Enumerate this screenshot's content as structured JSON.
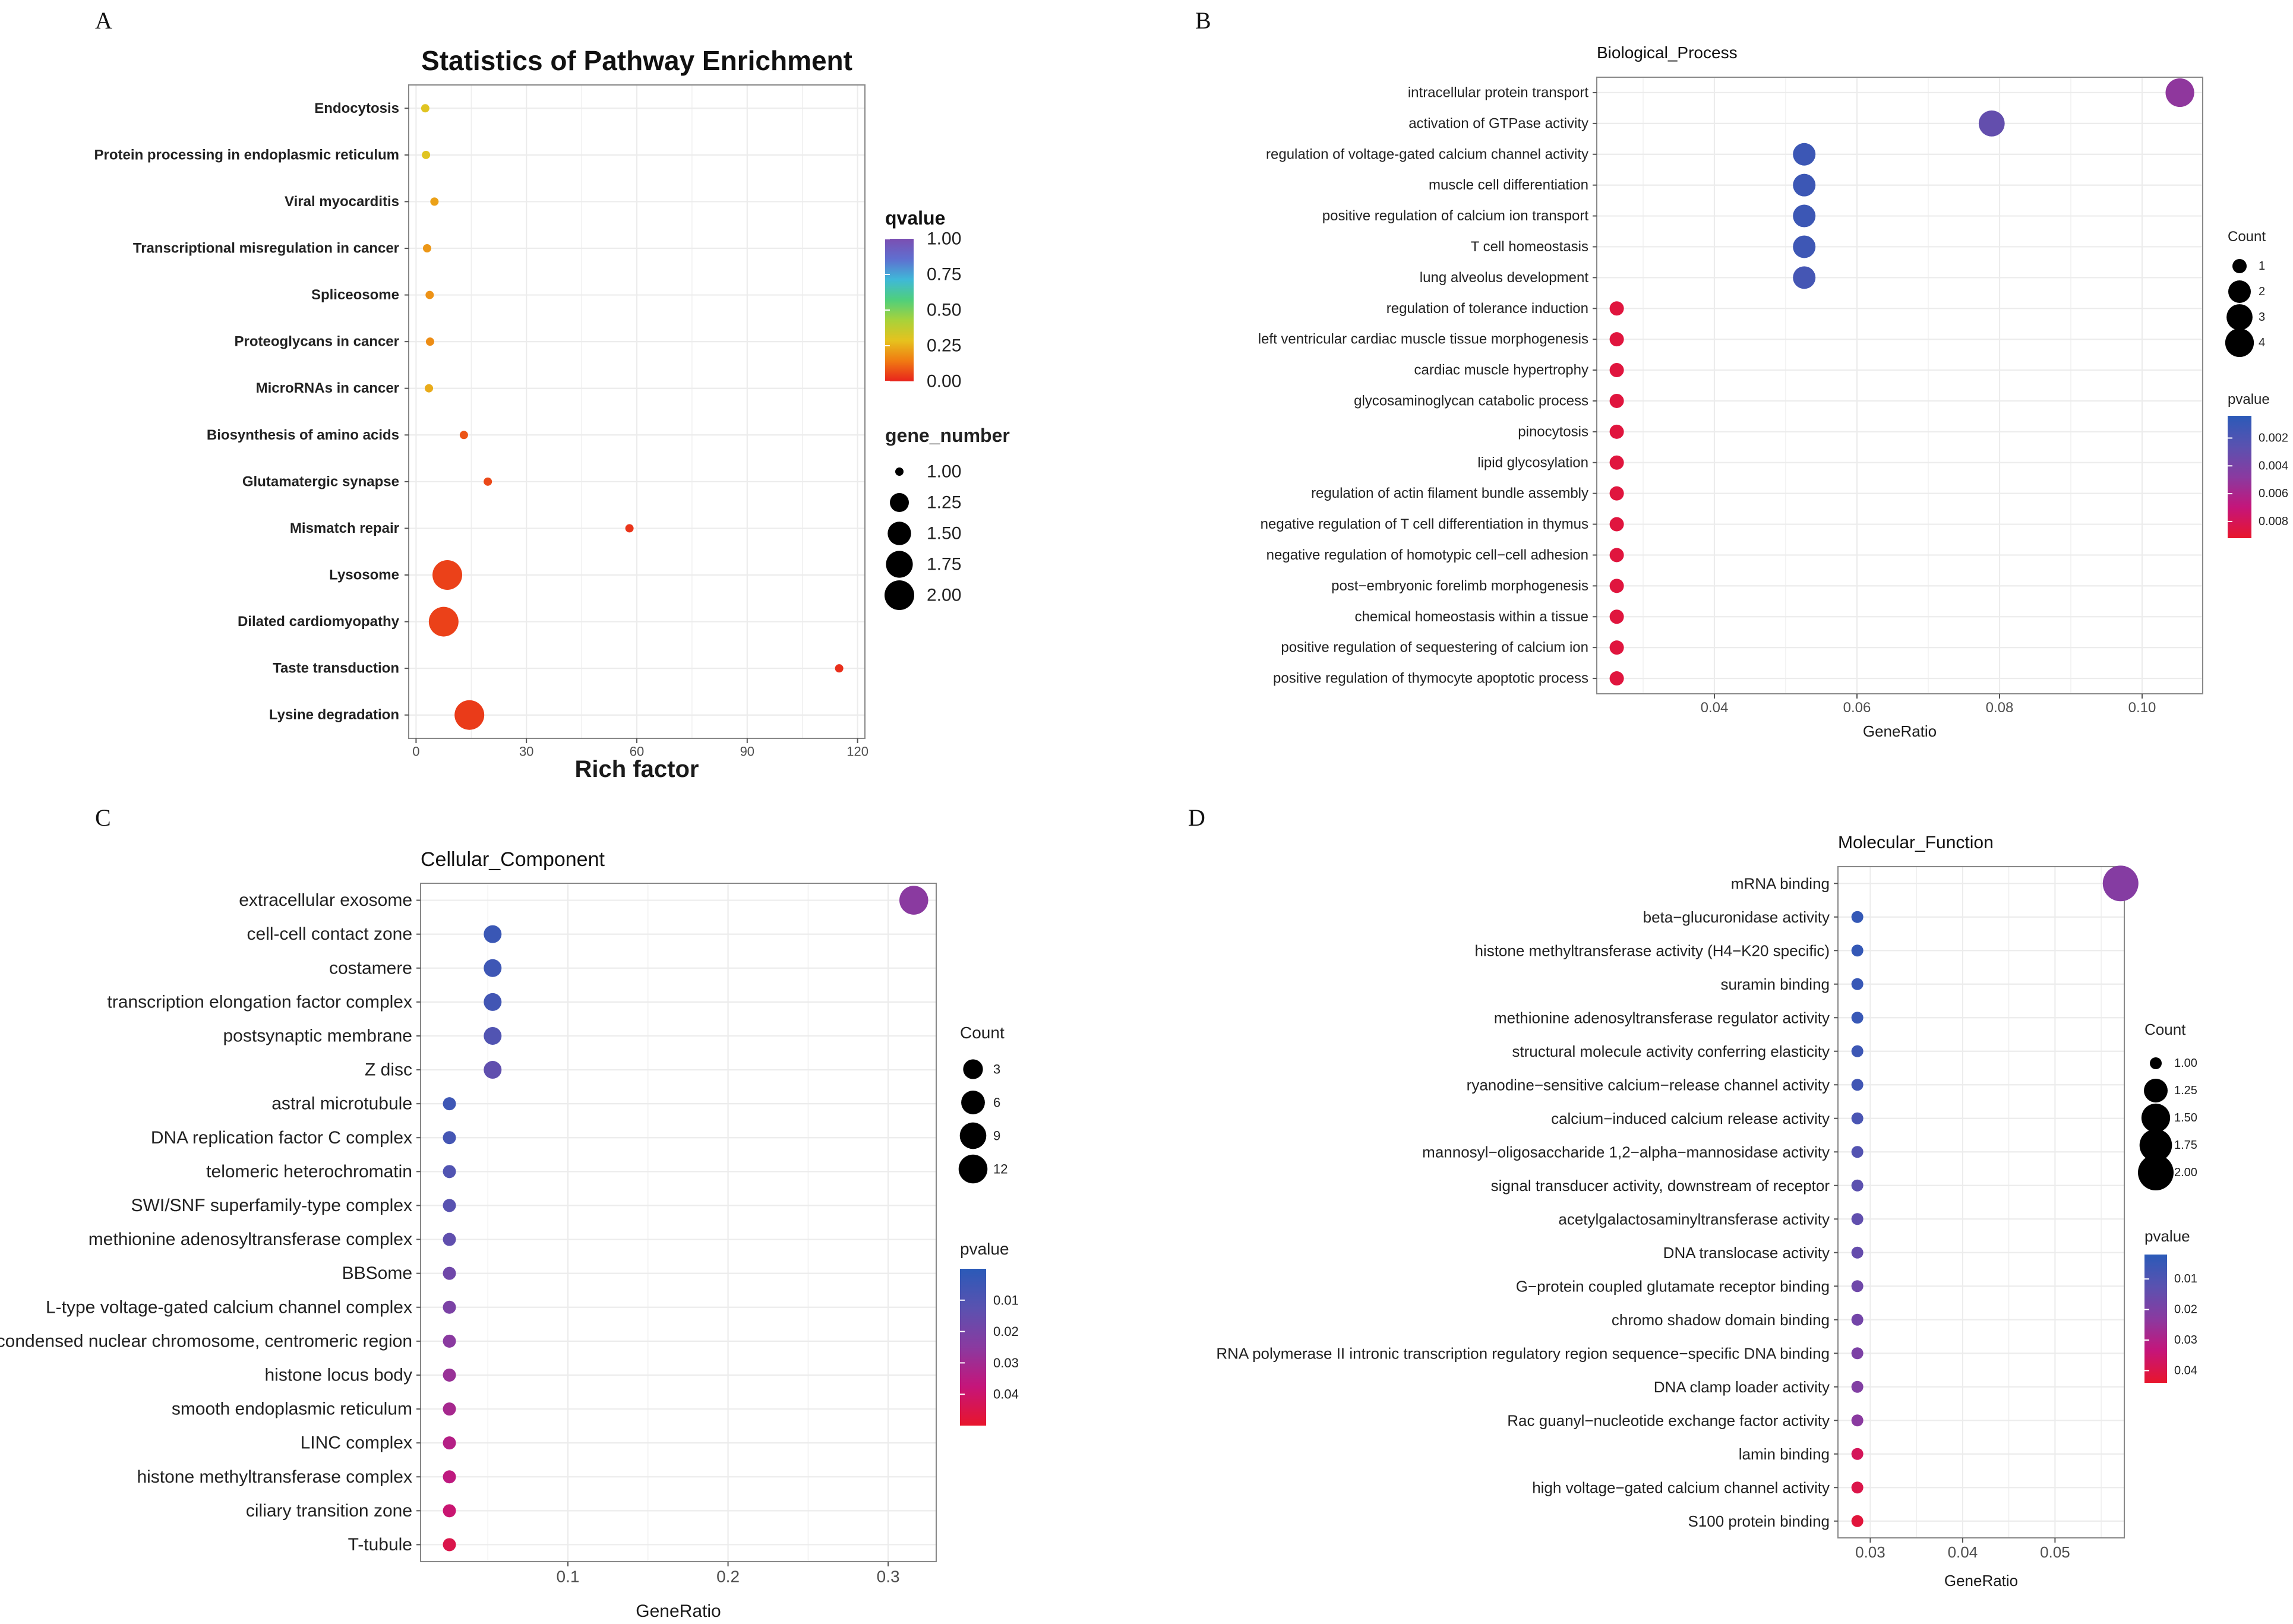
{
  "figure": {
    "panel_letters": [
      "A",
      "B",
      "C",
      "D"
    ]
  },
  "colors": {
    "q_gradient": [
      "#e8231c",
      "#f07a12",
      "#e6c21e",
      "#a8d23a",
      "#4fcf7c",
      "#3fb8d8",
      "#5f6fd0",
      "#7b4fb2"
    ],
    "p_gradient": [
      "#e8152c",
      "#c5157a",
      "#8a3aa0",
      "#5a52b0",
      "#2b5ab8"
    ],
    "plot_border": "#888888",
    "grid": "#ececec",
    "tick_label": "#4d4d4d",
    "axis_title": "#1a1a1a"
  },
  "chart_data": [
    {
      "type": "scatter",
      "panel": "A",
      "title": "Statistics of Pathway Enrichment",
      "xlabel": "Rich factor",
      "ylabel": "",
      "xlim": [
        -2,
        122
      ],
      "xticks": [
        0,
        30,
        60,
        90,
        120
      ],
      "grid": true,
      "categories": [
        "Endocytosis",
        "Protein processing in endoplasmic reticulum",
        "Viral myocarditis",
        "Transcriptional misregulation in cancer",
        "Spliceosome",
        "Proteoglycans in cancer",
        "MicroRNAs in cancer",
        "Biosynthesis of amino acids",
        "Glutamatergic synapse",
        "Mismatch repair",
        "Lysosome",
        "Dilated cardiomyopathy",
        "Taste transduction",
        "Lysine degradation"
      ],
      "x": [
        2.5,
        2.7,
        5.0,
        3.0,
        3.7,
        3.8,
        3.5,
        13.0,
        19.5,
        58.0,
        8.5,
        7.5,
        115.0,
        14.5
      ],
      "size": [
        1,
        1,
        1,
        1,
        1,
        1,
        1,
        1,
        1,
        1,
        2,
        2,
        1,
        2
      ],
      "color": [
        0.3,
        0.3,
        0.22,
        0.2,
        0.19,
        0.18,
        0.24,
        0.08,
        0.06,
        0.03,
        0.05,
        0.05,
        0.02,
        0.04
      ],
      "color_legend": {
        "title": "qvalue",
        "min": 0,
        "max": 1,
        "ticks": [
          "1.00",
          "0.75",
          "0.50",
          "0.25",
          "0.00"
        ]
      },
      "size_legend": {
        "title": "gene_number",
        "values": [
          1.0,
          1.25,
          1.5,
          1.75,
          2.0
        ],
        "labels": [
          "1.00",
          "1.25",
          "1.50",
          "1.75",
          "2.00"
        ]
      }
    },
    {
      "type": "scatter",
      "panel": "B",
      "title": "Biological_Process",
      "xlabel": "GeneRatio",
      "ylabel": "",
      "xlim": [
        0.0235,
        0.1085
      ],
      "xticks": [
        0.04,
        0.06,
        0.08,
        0.1
      ],
      "xtick_labels": [
        "0.04",
        "0.06",
        "0.08",
        "0.10"
      ],
      "grid": true,
      "categories": [
        "intracellular protein transport",
        "activation of GTPase activity",
        "regulation of voltage-gated calcium channel activity",
        "muscle cell differentiation",
        "positive regulation of calcium ion transport",
        "T cell homeostasis",
        "lung alveolus development",
        "regulation of tolerance induction",
        "left ventricular cardiac muscle tissue morphogenesis",
        "cardiac muscle hypertrophy",
        "glycosaminoglycan catabolic process",
        "pinocytosis",
        "lipid glycosylation",
        "regulation of actin filament bundle assembly",
        "negative regulation of T cell differentiation in thymus",
        "negative regulation of homotypic cell−cell adhesion",
        "post−embryonic forelimb morphogenesis",
        "chemical homeostasis within a tissue",
        "positive regulation of sequestering of calcium ion",
        "positive regulation of thymocyte apoptotic process"
      ],
      "x": [
        0.1053,
        0.0789,
        0.0526,
        0.0526,
        0.0526,
        0.0526,
        0.0526,
        0.0263,
        0.0263,
        0.0263,
        0.0263,
        0.0263,
        0.0263,
        0.0263,
        0.0263,
        0.0263,
        0.0263,
        0.0263,
        0.0263,
        0.0263
      ],
      "size": [
        4,
        3,
        2,
        2,
        2,
        2,
        2,
        1,
        1,
        1,
        1,
        1,
        1,
        1,
        1,
        1,
        1,
        1,
        1,
        1
      ],
      "color": [
        0.005,
        0.003,
        0.0012,
        0.0012,
        0.0012,
        0.0013,
        0.0016,
        0.0087,
        0.0087,
        0.0087,
        0.0087,
        0.0087,
        0.0087,
        0.0087,
        0.0087,
        0.0087,
        0.0087,
        0.0087,
        0.0087,
        0.0087
      ],
      "color_legend": {
        "title": "pvalue",
        "min": 0.0004,
        "max": 0.0092,
        "ticks": [
          "0.002",
          "0.004",
          "0.006",
          "0.008"
        ],
        "tick_values": [
          0.002,
          0.004,
          0.006,
          0.008
        ]
      },
      "size_legend": {
        "title": "Count",
        "values": [
          1,
          2,
          3,
          4
        ],
        "labels": [
          "1",
          "2",
          "3",
          "4"
        ]
      }
    },
    {
      "type": "scatter",
      "panel": "C",
      "title": "Cellular_Component",
      "xlabel": "GeneRatio",
      "ylabel": "",
      "xlim": [
        0.008,
        0.33
      ],
      "xticks": [
        0.1,
        0.2,
        0.3
      ],
      "xtick_labels": [
        "0.1",
        "0.2",
        "0.3"
      ],
      "grid": true,
      "categories": [
        "extracellular exosome",
        "cell-cell contact zone",
        "costamere",
        "transcription elongation factor complex",
        "postsynaptic membrane",
        "Z disc",
        "astral microtubule",
        "DNA replication factor C complex",
        "telomeric heterochromatin",
        "SWI/SNF superfamily-type complex",
        "methionine adenosyltransferase complex",
        "BBSome",
        "L-type voltage-gated calcium channel complex",
        "condensed nuclear chromosome, centromeric region",
        "histone locus body",
        "smooth endoplasmic reticulum",
        "LINC complex",
        "histone methyltransferase complex",
        "ciliary transition zone",
        "T-tubule"
      ],
      "x": [
        0.316,
        0.053,
        0.053,
        0.053,
        0.053,
        0.053,
        0.026,
        0.026,
        0.026,
        0.026,
        0.026,
        0.026,
        0.026,
        0.026,
        0.026,
        0.026,
        0.026,
        0.026,
        0.026,
        0.026
      ],
      "size": [
        12,
        2,
        2,
        2,
        2,
        2,
        1,
        1,
        1,
        1,
        1,
        1,
        1,
        1,
        1,
        1,
        1,
        1,
        1,
        1
      ],
      "color": [
        0.025,
        0.004,
        0.005,
        0.006,
        0.01,
        0.014,
        0.005,
        0.007,
        0.01,
        0.012,
        0.014,
        0.018,
        0.021,
        0.025,
        0.028,
        0.031,
        0.034,
        0.036,
        0.039,
        0.045
      ],
      "color_legend": {
        "title": "pvalue",
        "min": 0.0,
        "max": 0.05,
        "ticks": [
          "0.01",
          "0.02",
          "0.03",
          "0.04"
        ],
        "tick_values": [
          0.01,
          0.02,
          0.03,
          0.04
        ]
      },
      "size_legend": {
        "title": "Count",
        "values": [
          3,
          6,
          9,
          12
        ],
        "labels": [
          "3",
          "6",
          "9",
          "12"
        ]
      }
    },
    {
      "type": "scatter",
      "panel": "D",
      "title": "Molecular_Function",
      "xlabel": "GeneRatio",
      "ylabel": "",
      "xlim": [
        0.0265,
        0.0575
      ],
      "xticks": [
        0.03,
        0.04,
        0.05
      ],
      "xtick_labels": [
        "0.03",
        "0.04",
        "0.05"
      ],
      "grid": true,
      "categories": [
        "mRNA binding",
        "beta−glucuronidase activity",
        "histone methyltransferase activity (H4−K20 specific)",
        "suramin binding",
        "methionine adenosyltransferase regulator activity",
        "structural molecule activity conferring elasticity",
        "ryanodine−sensitive calcium−release channel activity",
        "calcium−induced calcium release activity",
        "mannosyl−oligosaccharide 1,2−alpha−mannosidase activity",
        "signal transducer activity, downstream of receptor",
        "acetylgalactosaminyltransferase activity",
        "DNA translocase activity",
        "G−protein coupled glutamate receptor binding",
        "chromo shadow domain binding",
        "RNA polymerase II intronic transcription regulatory region sequence−specific DNA binding",
        "DNA clamp loader activity",
        "Rac guanyl−nucleotide exchange factor activity",
        "lamin binding",
        "high voltage−gated calcium channel activity",
        "S100 protein binding"
      ],
      "x": [
        0.0571,
        0.0286,
        0.0286,
        0.0286,
        0.0286,
        0.0286,
        0.0286,
        0.0286,
        0.0286,
        0.0286,
        0.0286,
        0.0286,
        0.0286,
        0.0286,
        0.0286,
        0.0286,
        0.0286,
        0.0286,
        0.0286,
        0.0286
      ],
      "size": [
        2,
        1,
        1,
        1,
        1,
        1,
        1,
        1,
        1,
        1,
        1,
        1,
        1,
        1,
        1,
        1,
        1,
        1,
        1,
        1
      ],
      "color": [
        0.022,
        0.004,
        0.004,
        0.005,
        0.005,
        0.006,
        0.007,
        0.009,
        0.011,
        0.013,
        0.014,
        0.015,
        0.017,
        0.018,
        0.02,
        0.021,
        0.023,
        0.038,
        0.04,
        0.042
      ],
      "color_legend": {
        "title": "pvalue",
        "min": 0.002,
        "max": 0.044,
        "ticks": [
          "0.01",
          "0.02",
          "0.03",
          "0.04"
        ],
        "tick_values": [
          0.01,
          0.02,
          0.03,
          0.04
        ]
      },
      "size_legend": {
        "title": "Count",
        "values": [
          1.0,
          1.25,
          1.5,
          1.75,
          2.0
        ],
        "labels": [
          "1.00",
          "1.25",
          "1.50",
          "1.75",
          "2.00"
        ]
      }
    }
  ]
}
